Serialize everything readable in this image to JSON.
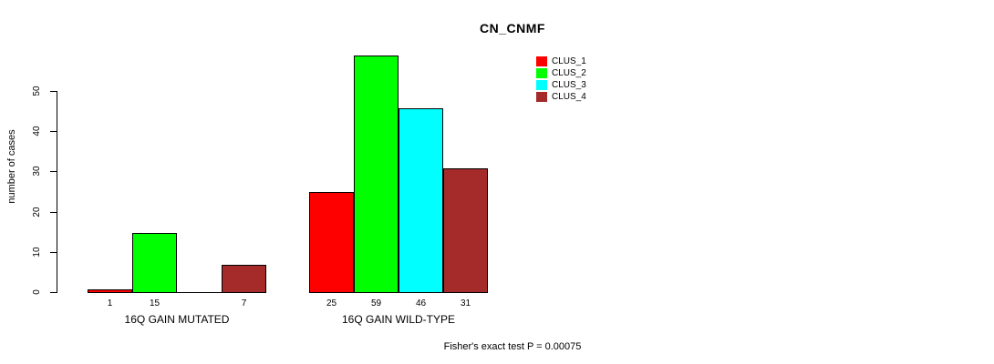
{
  "chart_data": {
    "type": "bar",
    "title": "CN_CNMF",
    "ylabel": "number of cases",
    "xlabel": "",
    "ylim": [
      0,
      50
    ],
    "yticks": [
      0,
      10,
      20,
      30,
      40,
      50
    ],
    "grid": false,
    "legend_position": "top-right",
    "categories": [
      "16Q GAIN MUTATED",
      "16Q GAIN WILD-TYPE"
    ],
    "series": [
      {
        "name": "CLUS_1",
        "color": "#ff0000",
        "values": [
          1,
          25
        ]
      },
      {
        "name": "CLUS_2",
        "color": "#00ff00",
        "values": [
          15,
          59
        ]
      },
      {
        "name": "CLUS_3",
        "color": "#00ffff",
        "values": [
          0,
          46
        ]
      },
      {
        "name": "CLUS_4",
        "color": "#a52a2a",
        "values": [
          7,
          31
        ]
      }
    ],
    "bar_value_labels": {
      "16Q GAIN MUTATED": [
        "1",
        "15",
        "",
        "7"
      ],
      "16Q GAIN WILD-TYPE": [
        "25",
        "59",
        "46",
        "31"
      ]
    },
    "annotation": "Fisher's exact test P = 0.00075"
  }
}
